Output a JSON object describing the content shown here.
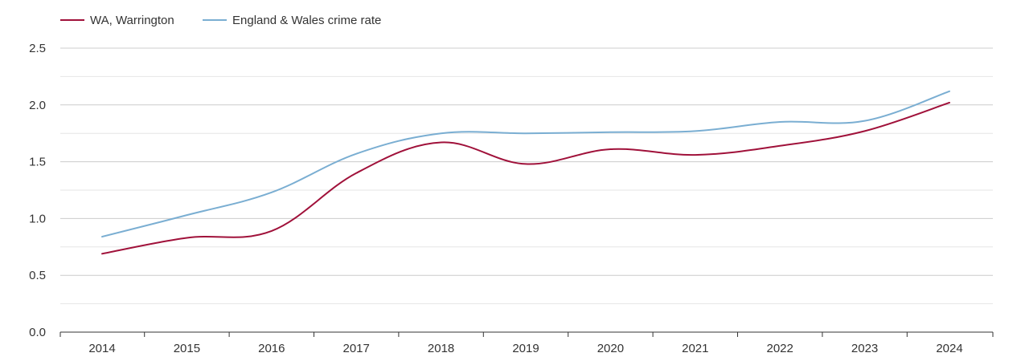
{
  "chart_data": {
    "type": "line",
    "title": "",
    "xlabel": "",
    "ylabel": "",
    "categories": [
      "2014",
      "2015",
      "2016",
      "2017",
      "2018",
      "2019",
      "2020",
      "2021",
      "2022",
      "2023",
      "2024"
    ],
    "y_ticks": [
      "0.0",
      "0.5",
      "1.0",
      "1.5",
      "2.0",
      "2.5"
    ],
    "ylim": [
      0,
      2.5
    ],
    "grid": true,
    "legend_position": "top-left",
    "series": [
      {
        "name": "WA, Warrington",
        "color": "#a0113a",
        "values": [
          0.69,
          0.83,
          0.89,
          1.4,
          1.67,
          1.48,
          1.61,
          1.56,
          1.64,
          1.77,
          2.02
        ]
      },
      {
        "name": "England & Wales crime rate",
        "color": "#7aaed2",
        "values": [
          0.84,
          1.03,
          1.23,
          1.57,
          1.75,
          1.75,
          1.76,
          1.77,
          1.85,
          1.86,
          2.12
        ]
      }
    ]
  }
}
